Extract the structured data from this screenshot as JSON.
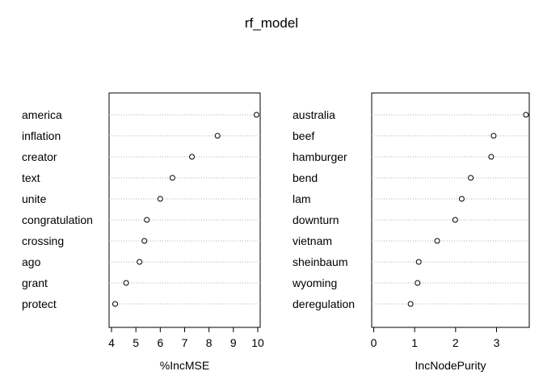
{
  "chart_data": {
    "type": "scatter",
    "title": "rf_model",
    "panels": [
      {
        "name": "imse",
        "xlabel": "%IncMSE",
        "xlim": [
          3.9,
          10.1
        ],
        "xticks": [
          4,
          5,
          6,
          7,
          8,
          9,
          10
        ],
        "categories": [
          "america",
          "inflation",
          "creator",
          "text",
          "unite",
          "congratulation",
          "crossing",
          "ago",
          "grant",
          "protect"
        ],
        "values": [
          9.95,
          8.35,
          7.3,
          6.5,
          6.0,
          5.45,
          5.35,
          5.15,
          4.6,
          4.15
        ],
        "grid": "dotted-horizontal"
      },
      {
        "name": "purity",
        "xlabel": "IncNodePurity",
        "xlim": [
          -0.05,
          3.8
        ],
        "xticks": [
          0,
          1,
          2,
          3
        ],
        "categories": [
          "australia",
          "beef",
          "hamburger",
          "bend",
          "lam",
          "downturn",
          "vietnam",
          "sheinbaum",
          "wyoming",
          "deregulation"
        ],
        "values": [
          3.72,
          2.93,
          2.87,
          2.37,
          2.15,
          1.99,
          1.55,
          1.1,
          1.07,
          0.9
        ],
        "grid": "dotted-horizontal"
      }
    ]
  }
}
